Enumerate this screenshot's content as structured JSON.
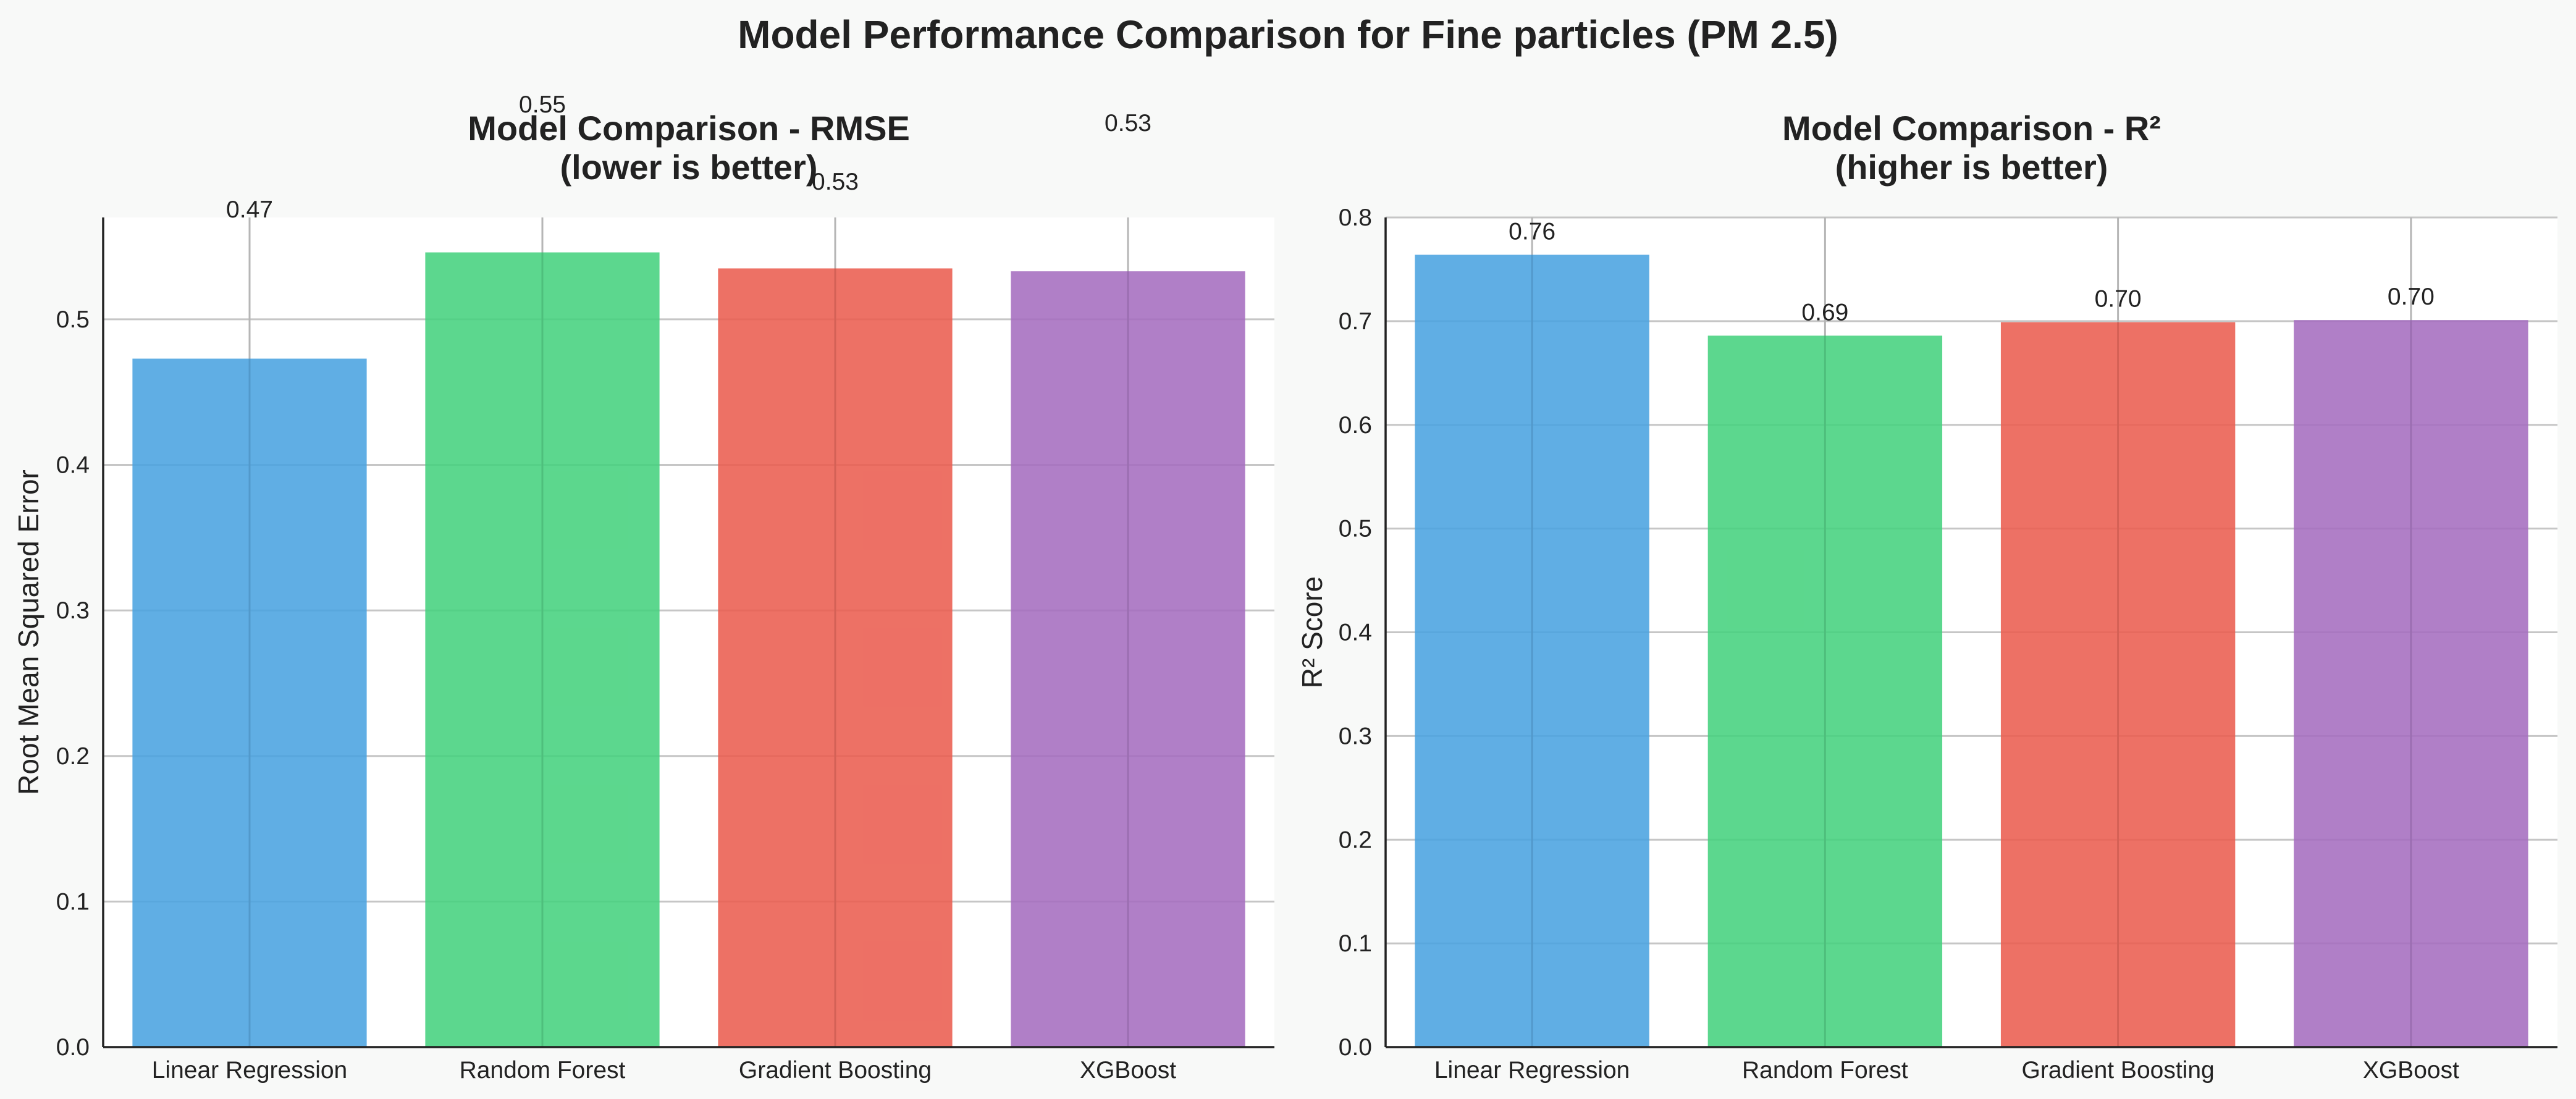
{
  "figure_title": "Model Performance Comparison for Fine particles (PM 2.5)",
  "colors": [
    "#4aa3e0",
    "#46d17e",
    "#eb5d50",
    "#a56dbf"
  ],
  "chart_data": [
    {
      "type": "bar",
      "title_lines": [
        "Model Comparison - RMSE",
        "(lower is better)"
      ],
      "xlabel": "",
      "ylabel": "Root Mean Squared Error",
      "categories": [
        "Linear Regression",
        "Random Forest",
        "Gradient Boosting",
        "XGBoost"
      ],
      "values": [
        0.473,
        0.546,
        0.535,
        0.533
      ],
      "value_labels": [
        "0.47",
        "0.55",
        "0.53",
        "0.53"
      ],
      "ylim": [
        0,
        0.57
      ],
      "yticks": [
        0.0,
        0.1,
        0.2,
        0.3,
        0.4,
        0.5
      ],
      "ytick_labels": [
        "0.0",
        "0.1",
        "0.2",
        "0.3",
        "0.4",
        "0.5"
      ],
      "grid": true
    },
    {
      "type": "bar",
      "title_lines": [
        "Model Comparison - R²",
        "(higher is better)"
      ],
      "xlabel": "",
      "ylabel": "R² Score",
      "categories": [
        "Linear Regression",
        "Random Forest",
        "Gradient Boosting",
        "XGBoost"
      ],
      "values": [
        0.764,
        0.686,
        0.699,
        0.701
      ],
      "value_labels": [
        "0.76",
        "0.69",
        "0.70",
        "0.70"
      ],
      "ylim": [
        0,
        0.8
      ],
      "yticks": [
        0.0,
        0.1,
        0.2,
        0.3,
        0.4,
        0.5,
        0.6,
        0.7,
        0.8
      ],
      "ytick_labels": [
        "0.0",
        "0.1",
        "0.2",
        "0.3",
        "0.4",
        "0.5",
        "0.6",
        "0.7",
        "0.8"
      ],
      "grid": true
    }
  ]
}
